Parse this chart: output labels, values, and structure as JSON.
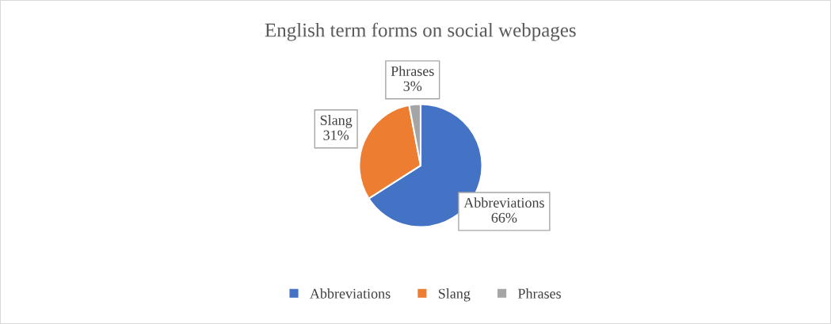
{
  "chart_data": {
    "type": "pie",
    "title": "English term forms on social webpages",
    "categories": [
      "Abbreviations",
      "Slang",
      "Phrases"
    ],
    "values": [
      66,
      31,
      3
    ],
    "colors": [
      "#4472c4",
      "#ed7d31",
      "#a5a5a5"
    ],
    "value_labels": [
      "66%",
      "31%",
      "3%"
    ],
    "legend": "bottom"
  }
}
